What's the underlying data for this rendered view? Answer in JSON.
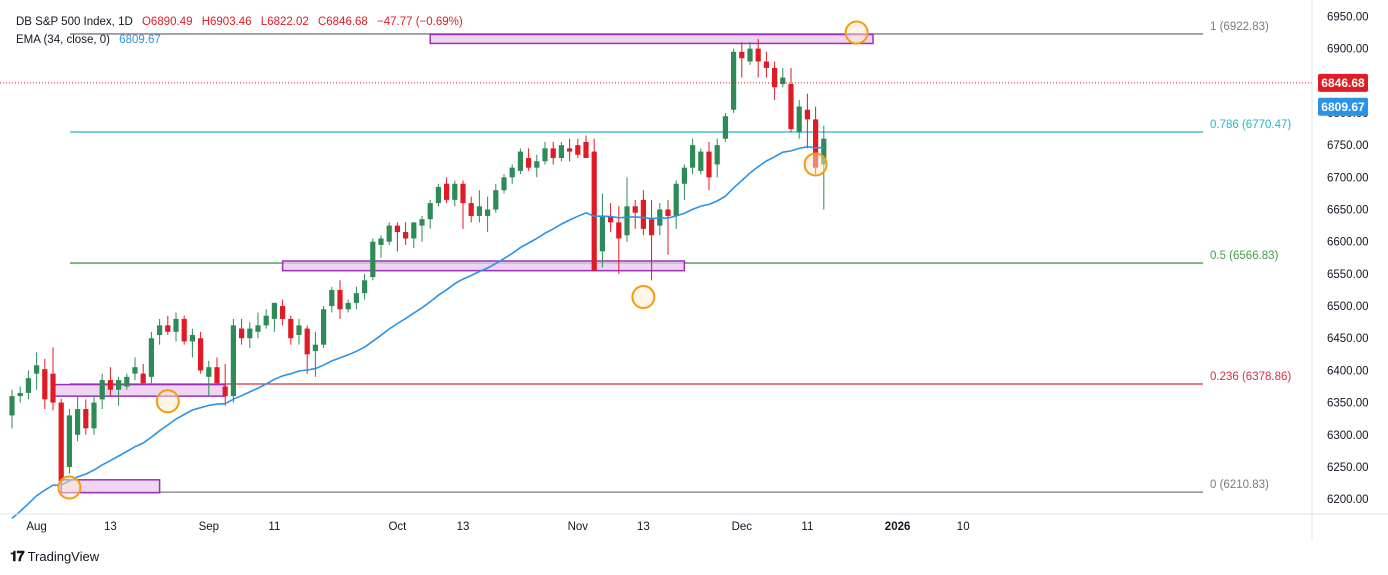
{
  "header": {
    "symbol": "DB S&P 500 Index, 1D",
    "open": "O6890.49",
    "high": "H6903.46",
    "low": "L6822.02",
    "close": "C6846.68",
    "change": "−47.77 (−0.69%)",
    "ema_label": "EMA (34, close, 0)",
    "ema_value": "6809.67"
  },
  "branding": {
    "name": "TradingView"
  },
  "price_badges": {
    "last": "6846.68",
    "ema": "6809.67"
  },
  "colors": {
    "up": "#26a269",
    "up_fill": "#2e8b57",
    "down": "#e01b24",
    "ema": "#2b93e6",
    "zone_fill": "#e8c7ee",
    "zone_stroke": "#9b30b8",
    "circle": "#f39c12"
  },
  "chart_data": {
    "type": "candlestick",
    "ylim": [
      6180,
      6960
    ],
    "y_ticks": [
      6200,
      6250,
      6300,
      6350,
      6400,
      6450,
      6500,
      6550,
      6600,
      6650,
      6700,
      6750,
      6800,
      6850,
      6900,
      6950
    ],
    "x_ticks": [
      {
        "label": "Aug",
        "index": 3
      },
      {
        "label": "13",
        "index": 12
      },
      {
        "label": "Sep",
        "index": 24
      },
      {
        "label": "11",
        "index": 32
      },
      {
        "label": "Oct",
        "index": 47
      },
      {
        "label": "13",
        "index": 55
      },
      {
        "label": "Nov",
        "index": 69
      },
      {
        "label": "13",
        "index": 77
      },
      {
        "label": "Dec",
        "index": 89
      },
      {
        "label": "11",
        "index": 97
      },
      {
        "label": "2026",
        "index": 108
      },
      {
        "label": "10",
        "index": 116
      }
    ],
    "candles": [
      {
        "o": 6330,
        "h": 6370,
        "l": 6310,
        "c": 6360
      },
      {
        "o": 6360,
        "h": 6375,
        "l": 6350,
        "c": 6365
      },
      {
        "o": 6365,
        "h": 6400,
        "l": 6355,
        "c": 6388
      },
      {
        "o": 6395,
        "h": 6428,
        "l": 6370,
        "c": 6408
      },
      {
        "o": 6402,
        "h": 6418,
        "l": 6340,
        "c": 6355
      },
      {
        "o": 6395,
        "h": 6436,
        "l": 6338,
        "c": 6350
      },
      {
        "o": 6350,
        "h": 6356,
        "l": 6215,
        "c": 6228
      },
      {
        "o": 6250,
        "h": 6340,
        "l": 6240,
        "c": 6330
      },
      {
        "o": 6300,
        "h": 6360,
        "l": 6290,
        "c": 6340
      },
      {
        "o": 6340,
        "h": 6355,
        "l": 6300,
        "c": 6310
      },
      {
        "o": 6310,
        "h": 6360,
        "l": 6300,
        "c": 6350
      },
      {
        "o": 6355,
        "h": 6395,
        "l": 6340,
        "c": 6385
      },
      {
        "o": 6385,
        "h": 6405,
        "l": 6360,
        "c": 6370
      },
      {
        "o": 6370,
        "h": 6390,
        "l": 6345,
        "c": 6385
      },
      {
        "o": 6375,
        "h": 6395,
        "l": 6370,
        "c": 6390
      },
      {
        "o": 6395,
        "h": 6420,
        "l": 6385,
        "c": 6405
      },
      {
        "o": 6395,
        "h": 6410,
        "l": 6380,
        "c": 6380
      },
      {
        "o": 6390,
        "h": 6460,
        "l": 6380,
        "c": 6450
      },
      {
        "o": 6455,
        "h": 6480,
        "l": 6440,
        "c": 6470
      },
      {
        "o": 6470,
        "h": 6485,
        "l": 6455,
        "c": 6460
      },
      {
        "o": 6460,
        "h": 6490,
        "l": 6445,
        "c": 6480
      },
      {
        "o": 6480,
        "h": 6485,
        "l": 6440,
        "c": 6445
      },
      {
        "o": 6445,
        "h": 6465,
        "l": 6420,
        "c": 6455
      },
      {
        "o": 6450,
        "h": 6460,
        "l": 6395,
        "c": 6400
      },
      {
        "o": 6390,
        "h": 6415,
        "l": 6360,
        "c": 6405
      },
      {
        "o": 6405,
        "h": 6420,
        "l": 6380,
        "c": 6380
      },
      {
        "o": 6375,
        "h": 6410,
        "l": 6345,
        "c": 6360
      },
      {
        "o": 6360,
        "h": 6480,
        "l": 6350,
        "c": 6470
      },
      {
        "o": 6465,
        "h": 6480,
        "l": 6440,
        "c": 6450
      },
      {
        "o": 6450,
        "h": 6475,
        "l": 6435,
        "c": 6465
      },
      {
        "o": 6460,
        "h": 6490,
        "l": 6450,
        "c": 6470
      },
      {
        "o": 6470,
        "h": 6495,
        "l": 6465,
        "c": 6485
      },
      {
        "o": 6480,
        "h": 6500,
        "l": 6460,
        "c": 6505
      },
      {
        "o": 6500,
        "h": 6510,
        "l": 6470,
        "c": 6480
      },
      {
        "o": 6480,
        "h": 6485,
        "l": 6440,
        "c": 6450
      },
      {
        "o": 6455,
        "h": 6480,
        "l": 6440,
        "c": 6470
      },
      {
        "o": 6465,
        "h": 6470,
        "l": 6395,
        "c": 6425
      },
      {
        "o": 6430,
        "h": 6460,
        "l": 6390,
        "c": 6440
      },
      {
        "o": 6440,
        "h": 6500,
        "l": 6435,
        "c": 6495
      },
      {
        "o": 6500,
        "h": 6530,
        "l": 6490,
        "c": 6525
      },
      {
        "o": 6525,
        "h": 6540,
        "l": 6480,
        "c": 6495
      },
      {
        "o": 6495,
        "h": 6510,
        "l": 6490,
        "c": 6505
      },
      {
        "o": 6505,
        "h": 6530,
        "l": 6495,
        "c": 6520
      },
      {
        "o": 6520,
        "h": 6550,
        "l": 6510,
        "c": 6540
      },
      {
        "o": 6545,
        "h": 6605,
        "l": 6540,
        "c": 6600
      },
      {
        "o": 6595,
        "h": 6610,
        "l": 6575,
        "c": 6605
      },
      {
        "o": 6600,
        "h": 6630,
        "l": 6595,
        "c": 6625
      },
      {
        "o": 6625,
        "h": 6630,
        "l": 6585,
        "c": 6615
      },
      {
        "o": 6615,
        "h": 6630,
        "l": 6595,
        "c": 6605
      },
      {
        "o": 6605,
        "h": 6630,
        "l": 6590,
        "c": 6630
      },
      {
        "o": 6625,
        "h": 6640,
        "l": 6600,
        "c": 6635
      },
      {
        "o": 6635,
        "h": 6665,
        "l": 6620,
        "c": 6660
      },
      {
        "o": 6660,
        "h": 6690,
        "l": 6655,
        "c": 6685
      },
      {
        "o": 6690,
        "h": 6700,
        "l": 6660,
        "c": 6665
      },
      {
        "o": 6665,
        "h": 6695,
        "l": 6655,
        "c": 6690
      },
      {
        "o": 6690,
        "h": 6695,
        "l": 6620,
        "c": 6660
      },
      {
        "o": 6660,
        "h": 6670,
        "l": 6630,
        "c": 6640
      },
      {
        "o": 6640,
        "h": 6680,
        "l": 6630,
        "c": 6655
      },
      {
        "o": 6640,
        "h": 6670,
        "l": 6615,
        "c": 6650
      },
      {
        "o": 6650,
        "h": 6690,
        "l": 6645,
        "c": 6680
      },
      {
        "o": 6680,
        "h": 6705,
        "l": 6675,
        "c": 6700
      },
      {
        "o": 6700,
        "h": 6720,
        "l": 6690,
        "c": 6715
      },
      {
        "o": 6710,
        "h": 6745,
        "l": 6705,
        "c": 6740
      },
      {
        "o": 6730,
        "h": 6745,
        "l": 6710,
        "c": 6715
      },
      {
        "o": 6715,
        "h": 6735,
        "l": 6700,
        "c": 6725
      },
      {
        "o": 6725,
        "h": 6755,
        "l": 6720,
        "c": 6745
      },
      {
        "o": 6745,
        "h": 6755,
        "l": 6720,
        "c": 6730
      },
      {
        "o": 6730,
        "h": 6755,
        "l": 6725,
        "c": 6750
      },
      {
        "o": 6745,
        "h": 6760,
        "l": 6725,
        "c": 6740
      },
      {
        "o": 6750,
        "h": 6760,
        "l": 6730,
        "c": 6735
      },
      {
        "o": 6755,
        "h": 6765,
        "l": 6730,
        "c": 6730
      },
      {
        "o": 6740,
        "h": 6760,
        "l": 6555,
        "c": 6555
      },
      {
        "o": 6585,
        "h": 6675,
        "l": 6560,
        "c": 6640
      },
      {
        "o": 6640,
        "h": 6660,
        "l": 6615,
        "c": 6630
      },
      {
        "o": 6630,
        "h": 6655,
        "l": 6550,
        "c": 6605
      },
      {
        "o": 6610,
        "h": 6700,
        "l": 6600,
        "c": 6655
      },
      {
        "o": 6655,
        "h": 6665,
        "l": 6620,
        "c": 6645
      },
      {
        "o": 6665,
        "h": 6680,
        "l": 6610,
        "c": 6620
      },
      {
        "o": 6635,
        "h": 6665,
        "l": 6540,
        "c": 6610
      },
      {
        "o": 6625,
        "h": 6660,
        "l": 6610,
        "c": 6650
      },
      {
        "o": 6650,
        "h": 6665,
        "l": 6580,
        "c": 6640
      },
      {
        "o": 6640,
        "h": 6695,
        "l": 6620,
        "c": 6690
      },
      {
        "o": 6690,
        "h": 6720,
        "l": 6665,
        "c": 6715
      },
      {
        "o": 6715,
        "h": 6760,
        "l": 6705,
        "c": 6750
      },
      {
        "o": 6710,
        "h": 6745,
        "l": 6705,
        "c": 6740
      },
      {
        "o": 6740,
        "h": 6755,
        "l": 6680,
        "c": 6700
      },
      {
        "o": 6720,
        "h": 6760,
        "l": 6700,
        "c": 6750
      },
      {
        "o": 6760,
        "h": 6800,
        "l": 6755,
        "c": 6795
      },
      {
        "o": 6805,
        "h": 6900,
        "l": 6800,
        "c": 6895
      },
      {
        "o": 6895,
        "h": 6910,
        "l": 6855,
        "c": 6885
      },
      {
        "o": 6880,
        "h": 6910,
        "l": 6875,
        "c": 6900
      },
      {
        "o": 6900,
        "h": 6915,
        "l": 6855,
        "c": 6880
      },
      {
        "o": 6880,
        "h": 6895,
        "l": 6855,
        "c": 6870
      },
      {
        "o": 6870,
        "h": 6880,
        "l": 6820,
        "c": 6840
      },
      {
        "o": 6845,
        "h": 6870,
        "l": 6840,
        "c": 6855
      },
      {
        "o": 6845,
        "h": 6870,
        "l": 6770,
        "c": 6775
      },
      {
        "o": 6770,
        "h": 6820,
        "l": 6760,
        "c": 6810
      },
      {
        "o": 6805,
        "h": 6830,
        "l": 6745,
        "c": 6790
      },
      {
        "o": 6790,
        "h": 6810,
        "l": 6705,
        "c": 6715
      },
      {
        "o": 6720,
        "h": 6780,
        "l": 6650,
        "c": 6760
      }
    ],
    "ema": {
      "name": "EMA (34, close, 0)"
    },
    "fib_levels": [
      {
        "label": "1 (6922.83)",
        "value": 6922.83,
        "color": "#787b86"
      },
      {
        "label": "0.786 (6770.47)",
        "value": 6770.47,
        "color": "#26b5c9"
      },
      {
        "label": "0.5 (6566.83)",
        "value": 6566.83,
        "color": "#43a047"
      },
      {
        "label": "0.236 (6378.86)",
        "value": 6378.86,
        "color": "#d32f4a"
      },
      {
        "label": "0 (6210.83)",
        "value": 6210.83,
        "color": "#787b86"
      }
    ],
    "zones": [
      {
        "from_index": 5,
        "to_index": 26,
        "low": 6360,
        "high": 6378
      },
      {
        "from_index": 6,
        "to_index": 18,
        "low": 6210,
        "high": 6230
      },
      {
        "from_index": 33,
        "to_index": 82,
        "low": 6555,
        "high": 6570
      },
      {
        "from_index": 51,
        "to_index": 105,
        "low": 6908,
        "high": 6922
      }
    ],
    "markers": [
      {
        "index": 7,
        "value": 6218
      },
      {
        "index": 19,
        "value": 6352
      },
      {
        "index": 77,
        "value": 6514
      },
      {
        "index": 98,
        "value": 6720
      },
      {
        "index": 103,
        "value": 6925
      }
    ]
  }
}
